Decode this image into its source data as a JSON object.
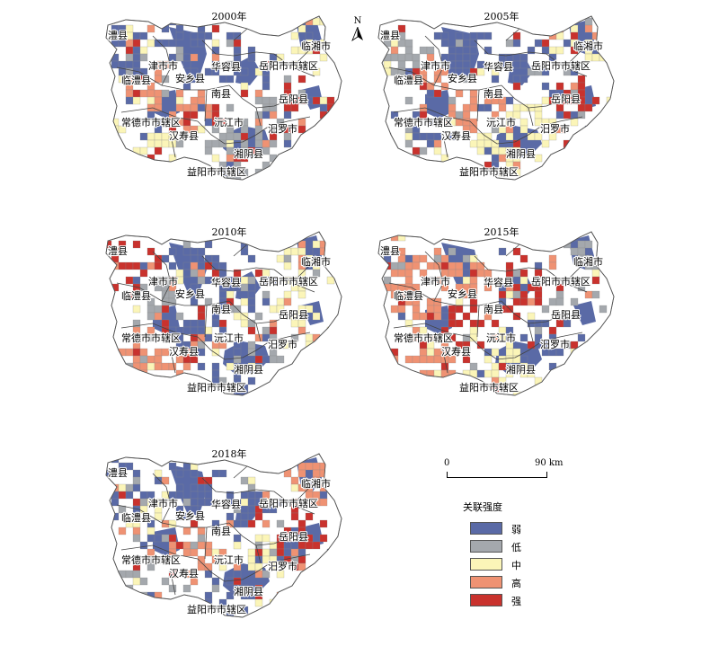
{
  "panels": [
    {
      "year_label": "2000年",
      "dominant": [
        "weak",
        "weak",
        "mid",
        "high",
        "low",
        "mid",
        "strong",
        "high",
        "weak",
        "low"
      ]
    },
    {
      "year_label": "2005年",
      "dominant": [
        "weak",
        "weak",
        "mid",
        "high",
        "mid",
        "weak",
        "strong",
        "high",
        "low",
        "mid"
      ]
    },
    {
      "year_label": "2010年",
      "dominant": [
        "weak",
        "weak",
        "mid",
        "low",
        "weak",
        "high",
        "mid",
        "weak",
        "strong",
        "low"
      ]
    },
    {
      "year_label": "2015年",
      "dominant": [
        "high",
        "strong",
        "low",
        "high",
        "mid",
        "high",
        "low",
        "strong",
        "high",
        "weak"
      ]
    },
    {
      "year_label": "2018年",
      "dominant": [
        "weak",
        "weak",
        "high",
        "mid",
        "weak",
        "low",
        "strong",
        "high",
        "weak",
        "mid"
      ]
    }
  ],
  "place_names": {
    "lixian": "澧县",
    "jinshi": "津市市",
    "linli": "临澧县",
    "anxiang": "安乡县",
    "huarong": "华容县",
    "yueyang_district": "岳阳市市辖区",
    "linxiang": "临湘市",
    "nanxian": "南县",
    "yueyang_county": "岳阳县",
    "changde_district": "常德市市辖区",
    "hanshou": "汉寿县",
    "yuanjiang": "沅江市",
    "miluo": "汨罗市",
    "xiangyin": "湘阴县",
    "yiyang_district": "益阳市市辖区"
  },
  "north_label": "N",
  "scale": {
    "zero": "0",
    "max": "90 km"
  },
  "legend": {
    "title": "关联强度",
    "items": [
      {
        "key": "weak",
        "label": "弱",
        "color": "#5a6aa6"
      },
      {
        "key": "low",
        "label": "低",
        "color": "#a4a8ad"
      },
      {
        "key": "mid",
        "label": "中",
        "color": "#fbf5b8"
      },
      {
        "key": "high",
        "label": "高",
        "color": "#ef9273"
      },
      {
        "key": "strong",
        "label": "强",
        "color": "#c9322d"
      }
    ]
  }
}
